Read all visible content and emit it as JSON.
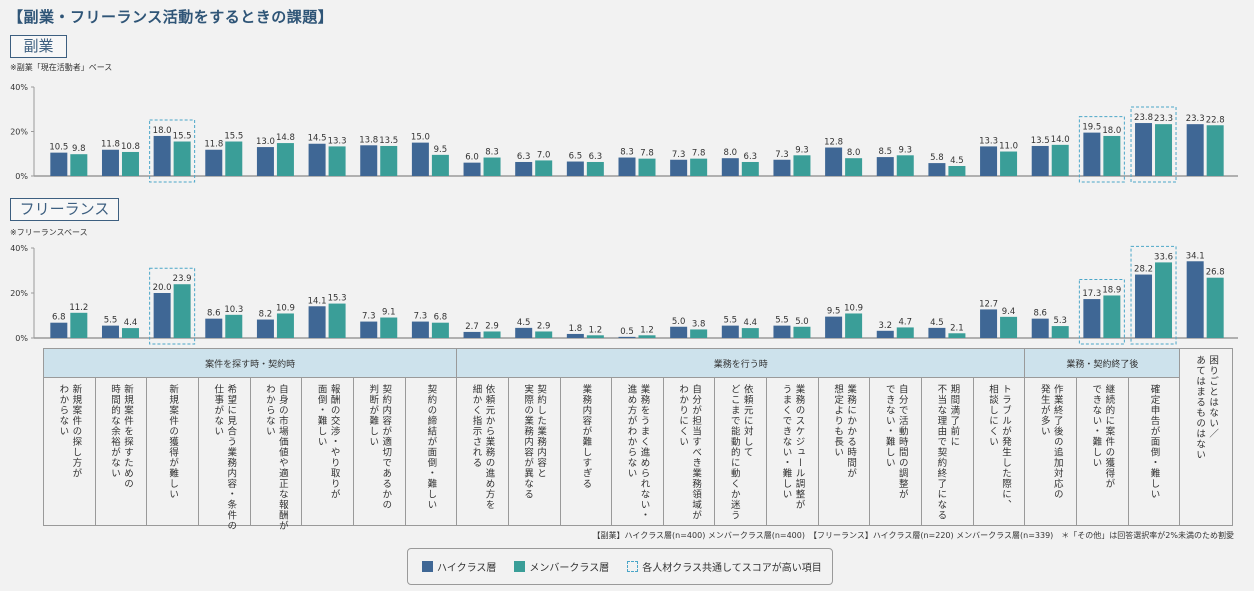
{
  "title": "【副業・フリーランス活動をするときの課題】",
  "colors": {
    "high": "#3f6795",
    "member": "#3a9e98",
    "highlight": "#4ba6c8",
    "group_header": "#cde2ec"
  },
  "chart_data": [
    {
      "type": "bar",
      "section_label": "副業",
      "note": "※副業「現在活動者」ベース",
      "ylim": [
        0,
        40
      ],
      "yticks": [
        "40%",
        "20%",
        "0%"
      ],
      "yticks_values": [
        40,
        20,
        0
      ],
      "series": [
        {
          "name": "ハイクラス層",
          "values": [
            10.5,
            11.8,
            18.0,
            11.8,
            13.0,
            14.5,
            13.8,
            15.0,
            6.0,
            6.3,
            6.5,
            8.3,
            7.3,
            8.0,
            7.3,
            12.8,
            8.5,
            5.8,
            13.3,
            13.5,
            19.5,
            23.8,
            23.3
          ]
        },
        {
          "name": "メンバークラス層",
          "values": [
            9.8,
            10.8,
            15.5,
            15.5,
            14.8,
            13.3,
            13.5,
            9.5,
            8.3,
            7.0,
            6.3,
            7.8,
            7.8,
            6.3,
            9.3,
            8.0,
            9.3,
            4.5,
            11.0,
            14.0,
            18.0,
            23.3,
            22.8
          ]
        }
      ],
      "labels": [
        [
          "10.5",
          "9.8"
        ],
        [
          "11.8",
          "10.8"
        ],
        [
          "18.0",
          "15.5"
        ],
        [
          "11.8",
          "15.5"
        ],
        [
          "13.0",
          "14.8"
        ],
        [
          "14.5",
          "13.3"
        ],
        [
          "13.8",
          "13.5"
        ],
        [
          "15.0",
          "9.5"
        ],
        [
          "6.0",
          "8.3"
        ],
        [
          "6.3",
          "7.0"
        ],
        [
          "6.5",
          "6.3"
        ],
        [
          "8.3",
          "7.8"
        ],
        [
          "7.3",
          "7.8"
        ],
        [
          "8.0",
          "6.3"
        ],
        [
          "7.3",
          "9.3"
        ],
        [
          "12.8",
          "8.0"
        ],
        [
          "8.5",
          "9.3"
        ],
        [
          "5.8",
          "4.5"
        ],
        [
          "13.3",
          "11.0"
        ],
        [
          "13.5",
          "14.0"
        ],
        [
          "19.5",
          "18.0"
        ],
        [
          "23.8",
          "23.3"
        ],
        [
          "23.3",
          "22.8"
        ]
      ],
      "highlighted": [
        2,
        20,
        21
      ]
    },
    {
      "type": "bar",
      "section_label": "フリーランス",
      "note": "※フリーランスベース",
      "ylim": [
        0,
        40
      ],
      "yticks": [
        "40%",
        "20%",
        "0%"
      ],
      "yticks_values": [
        40,
        20,
        0
      ],
      "series": [
        {
          "name": "ハイクラス層",
          "values": [
            6.8,
            5.5,
            20.0,
            8.6,
            8.2,
            14.1,
            7.3,
            7.3,
            2.7,
            4.5,
            1.8,
            0.5,
            5.0,
            5.5,
            5.5,
            9.5,
            3.2,
            4.5,
            12.7,
            8.6,
            17.3,
            28.2,
            34.1
          ]
        },
        {
          "name": "メンバークラス層",
          "values": [
            11.2,
            4.4,
            23.9,
            10.3,
            10.9,
            15.3,
            9.1,
            6.8,
            2.9,
            2.9,
            1.2,
            1.2,
            3.8,
            4.4,
            5.0,
            10.9,
            4.7,
            2.1,
            9.4,
            5.3,
            18.9,
            33.6,
            26.8
          ]
        }
      ],
      "labels": [
        [
          "6.8",
          "11.2"
        ],
        [
          "5.5",
          "4.4"
        ],
        [
          "20.0",
          "23.9"
        ],
        [
          "8.6",
          "10.3"
        ],
        [
          "8.2",
          "10.9"
        ],
        [
          "14.1",
          "15.3"
        ],
        [
          "7.3",
          "9.1"
        ],
        [
          "7.3",
          "6.8"
        ],
        [
          "2.7",
          "2.9"
        ],
        [
          "4.5",
          "2.9"
        ],
        [
          "1.8",
          "1.2"
        ],
        [
          "0.5",
          "1.2"
        ],
        [
          "5.0",
          "3.8"
        ],
        [
          "5.5",
          "4.4"
        ],
        [
          "5.5",
          "5.0"
        ],
        [
          "9.5",
          "10.9"
        ],
        [
          "3.2",
          "4.7"
        ],
        [
          "4.5",
          "2.1"
        ],
        [
          "12.7",
          "9.4"
        ],
        [
          "8.6",
          "5.3"
        ],
        [
          "17.3",
          "18.9"
        ],
        [
          "28.2",
          "33.6"
        ],
        [
          "34.1",
          "26.8"
        ]
      ],
      "highlighted": [
        2,
        20,
        21
      ]
    }
  ],
  "categories": [
    "新規案件の探し方が\nわからない",
    "新規案件を探すための\n時間的な余裕がない",
    "新規案件の獲得が難しい",
    "希望に見合う業務内容・条件の\n仕事がない",
    "自身の市場価値や適正な報酬が\nわからない",
    "報酬の交渉・やり取りが\n面倒・難しい",
    "契約内容が適切であるかの\n判断が難しい",
    "契約の締結が面倒・難しい",
    "依頼元から業務の進め方を\n細かく指示される",
    "契約した業務内容と\n実際の業務内容が異なる",
    "業務内容が難しすぎる",
    "業務をうまく進められない・\n進め方がわからない",
    "自分が担当すべき業務領域が\nわかりにくい",
    "依頼元に対して\nどこまで能動的に動くか迷う",
    "業務のスケジュール調整が\nうまくできない・難しい",
    "業務にかかる時間が\n想定よりも長い",
    "自分で活動時間の調整が\nできない・難しい",
    "期間満了前に\n不当な理由で契約終了になる",
    "トラブルが発生した際に、\n相談しにくい",
    "作業終了後の追加対応の\n発生が多い",
    "継続的に案件の獲得が\nできない・難しい",
    "確定申告が面倒・難しい",
    "困りごとはない／\nあてはまるものはない"
  ],
  "groups": [
    {
      "label": "案件を探す時・契約時",
      "span": 8
    },
    {
      "label": "業務を行う時",
      "span": 11
    },
    {
      "label": "業務・契約終了後",
      "span": 3
    }
  ],
  "footnote": "【副業】ハイクラス層(n=400) メンバークラス層(n=400)　【フリーランス】ハイクラス層(n=220) メンバークラス層(n=339)　＊「その他」は回答選択率が2%未満のため割愛",
  "legend": {
    "high": "ハイクラス層",
    "member": "メンバークラス層",
    "highlight": "各人材クラス共通してスコアが高い項目"
  }
}
